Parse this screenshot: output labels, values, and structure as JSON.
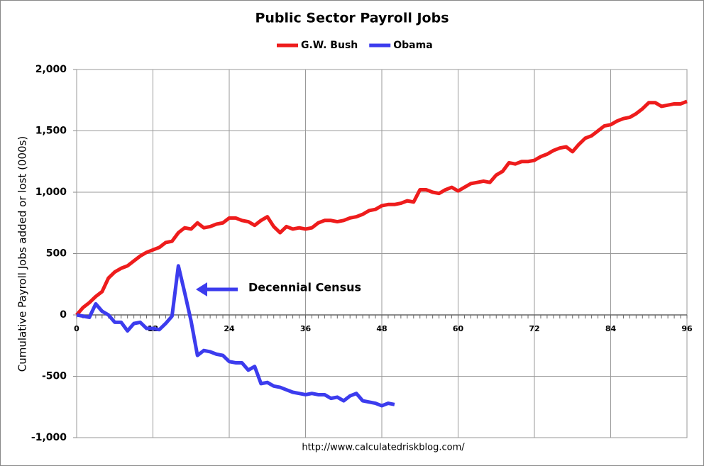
{
  "chart_data": {
    "type": "line",
    "title": "Public Sector Payroll Jobs",
    "y_label": "Cumulative Payroll Jobs added or lost (000s)",
    "source": "http://www.calculatedriskblog.com/",
    "annotation": "Decennial Census",
    "x": [
      0,
      1,
      2,
      3,
      4,
      5,
      6,
      7,
      8,
      9,
      10,
      11,
      12,
      13,
      14,
      15,
      16,
      17,
      18,
      19,
      20,
      21,
      22,
      23,
      24,
      25,
      26,
      27,
      28,
      29,
      30,
      31,
      32,
      33,
      34,
      35,
      36,
      37,
      38,
      39,
      40,
      41,
      42,
      43,
      44,
      45,
      46,
      47,
      48,
      49,
      50,
      51,
      52,
      53,
      54,
      55,
      56,
      57,
      58,
      59,
      60,
      61,
      62,
      63,
      64,
      65,
      66,
      67,
      68,
      69,
      70,
      71,
      72,
      73,
      74,
      75,
      76,
      77,
      78,
      79,
      80,
      81,
      82,
      83,
      84,
      85,
      86,
      87,
      88,
      89,
      90,
      91,
      92,
      93,
      94,
      95,
      96
    ],
    "series": [
      {
        "name": "G.W. Bush",
        "color": "#ee1c1c",
        "values": [
          0,
          60,
          100,
          150,
          190,
          300,
          350,
          380,
          400,
          440,
          480,
          510,
          530,
          550,
          590,
          600,
          670,
          710,
          700,
          750,
          710,
          720,
          740,
          750,
          790,
          790,
          770,
          760,
          730,
          770,
          800,
          720,
          670,
          720,
          700,
          710,
          700,
          710,
          750,
          770,
          770,
          760,
          770,
          790,
          800,
          820,
          850,
          860,
          890,
          900,
          900,
          910,
          930,
          920,
          1020,
          1020,
          1000,
          990,
          1020,
          1040,
          1010,
          1040,
          1070,
          1080,
          1090,
          1080,
          1140,
          1170,
          1240,
          1230,
          1250,
          1250,
          1260,
          1290,
          1310,
          1340,
          1360,
          1370,
          1330,
          1390,
          1440,
          1460,
          1500,
          1540,
          1550,
          1580,
          1600,
          1610,
          1640,
          1680,
          1730,
          1730,
          1700,
          1710,
          1720,
          1720,
          1740
        ]
      },
      {
        "name": "Obama",
        "color": "#3c3cee",
        "values": [
          0,
          -10,
          -20,
          90,
          30,
          0,
          -60,
          -60,
          -130,
          -70,
          -60,
          -110,
          -110,
          -120,
          -70,
          -10,
          400,
          180,
          -50,
          -330,
          -290,
          -300,
          -320,
          -330,
          -380,
          -390,
          -390,
          -450,
          -420,
          -560,
          -550,
          -580,
          -590,
          -610,
          -630,
          -640,
          -650,
          -640,
          -650,
          -650,
          -680,
          -670,
          -700,
          -660,
          -640,
          -700,
          -710,
          -720,
          -740,
          -720,
          -730,
          null,
          null,
          null,
          null,
          null,
          null,
          null,
          null,
          null,
          null,
          null,
          null,
          null,
          null,
          null,
          null,
          null,
          null,
          null,
          null,
          null,
          null,
          null,
          null,
          null,
          null,
          null,
          null,
          null,
          null,
          null,
          null,
          null,
          null,
          null,
          null,
          null,
          null,
          null,
          null,
          null,
          null,
          null,
          null,
          null,
          null
        ]
      }
    ],
    "xlim": [
      0,
      96
    ],
    "xticks": [
      0,
      12,
      24,
      36,
      48,
      60,
      72,
      84,
      96
    ],
    "ylim": [
      -1000,
      2000
    ],
    "yticks": [
      {
        "value": -1000,
        "label": "-1,000"
      },
      -500,
      0,
      500,
      {
        "value": 1000,
        "label": "1,000"
      },
      {
        "value": 1500,
        "label": "1,500"
      },
      {
        "value": 2000,
        "label": "2,000"
      }
    ],
    "grid": true,
    "legend": "top"
  }
}
